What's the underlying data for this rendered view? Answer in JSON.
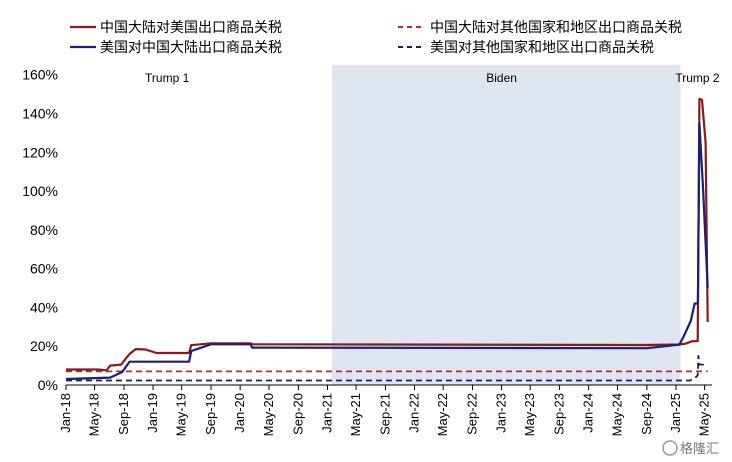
{
  "chart_data": {
    "type": "line",
    "y_tick_labels": [
      "0%",
      "20%",
      "40%",
      "60%",
      "80%",
      "100%",
      "120%",
      "140%",
      "160%"
    ],
    "ylim": [
      0,
      165
    ],
    "x_tick_labels": [
      "Jan-18",
      "May-18",
      "Sep-18",
      "Jan-19",
      "May-19",
      "Sep-19",
      "Jan-20",
      "May-20",
      "Sep-20",
      "Jan-21",
      "May-21",
      "Sep-21",
      "Jan-22",
      "May-22",
      "Sep-22",
      "Jan-23",
      "May-23",
      "Sep-23",
      "Jan-24",
      "May-24",
      "Sep-24",
      "Jan-25",
      "May-25"
    ],
    "shaded_region": {
      "label": "Biden",
      "from": "2021-01-20",
      "to": "2025-01-20",
      "color": "#dfe6f1"
    },
    "period_labels": [
      {
        "label": "Trump 1",
        "at": "2019-03-01"
      },
      {
        "label": "Biden",
        "at": "2023-01-01"
      },
      {
        "label": "Trump 2",
        "at": "2025-04-01"
      }
    ],
    "series": [
      {
        "name": "中国大陆对美国出口商品关税",
        "color": "#8b1a1a",
        "dash": false,
        "points": [
          [
            "2018-01-01",
            8.0
          ],
          [
            "2018-05-15",
            8.0
          ],
          [
            "2018-06-20",
            7.6
          ],
          [
            "2018-07-05",
            10.0
          ],
          [
            "2018-08-20",
            10.5
          ],
          [
            "2018-09-24",
            16.0
          ],
          [
            "2018-10-20",
            18.5
          ],
          [
            "2018-12-01",
            18.3
          ],
          [
            "2019-01-15",
            16.5
          ],
          [
            "2019-06-01",
            16.5
          ],
          [
            "2019-06-10",
            20.5
          ],
          [
            "2019-09-01",
            21.5
          ],
          [
            "2020-02-14",
            21.5
          ],
          [
            "2020-02-20",
            21.0
          ],
          [
            "2024-09-01",
            20.6
          ],
          [
            "2025-01-15",
            20.9
          ],
          [
            "2025-02-10",
            21.3
          ],
          [
            "2025-03-10",
            22.6
          ],
          [
            "2025-04-02",
            22.6
          ],
          [
            "2025-04-09",
            147.5
          ],
          [
            "2025-04-20",
            147.0
          ],
          [
            "2025-05-05",
            125.0
          ],
          [
            "2025-05-14",
            32.5
          ]
        ]
      },
      {
        "name": "美国对中国大陆出口商品关税",
        "color": "#1b1f7a",
        "dash": false,
        "points": [
          [
            "2018-01-01",
            3.1
          ],
          [
            "2018-07-05",
            3.8
          ],
          [
            "2018-08-25",
            6.7
          ],
          [
            "2018-09-24",
            12.0
          ],
          [
            "2019-06-01",
            12.0
          ],
          [
            "2019-06-10",
            17.5
          ],
          [
            "2019-09-01",
            21.0
          ],
          [
            "2020-02-14",
            21.0
          ],
          [
            "2020-02-20",
            19.3
          ],
          [
            "2024-09-01",
            19.0
          ],
          [
            "2025-01-15",
            20.8
          ],
          [
            "2025-02-04",
            25.5
          ],
          [
            "2025-03-04",
            33.0
          ],
          [
            "2025-03-20",
            42.0
          ],
          [
            "2025-04-03",
            42.0
          ],
          [
            "2025-04-09",
            135.0
          ],
          [
            "2025-04-25",
            100.0
          ],
          [
            "2025-05-14",
            50.0
          ]
        ]
      },
      {
        "name": "中国大陆对其他国家和地区出口商品关税",
        "color": "#c0282e",
        "dash": true,
        "points": [
          [
            "2018-01-01",
            7.0
          ],
          [
            "2025-05-14",
            7.0
          ]
        ]
      },
      {
        "name": "美国对其他国家和地区出口商品关税",
        "color": "#1b1f5a",
        "dash": true,
        "points": [
          [
            "2018-01-01",
            2.3
          ],
          [
            "2025-03-01",
            2.3
          ],
          [
            "2025-03-25",
            4.0
          ],
          [
            "2025-04-02",
            5.0
          ],
          [
            "2025-04-05",
            15.0
          ],
          [
            "2025-04-09",
            10.5
          ],
          [
            "2025-05-14",
            10.5
          ]
        ]
      }
    ],
    "watermark": "格隆汇"
  }
}
